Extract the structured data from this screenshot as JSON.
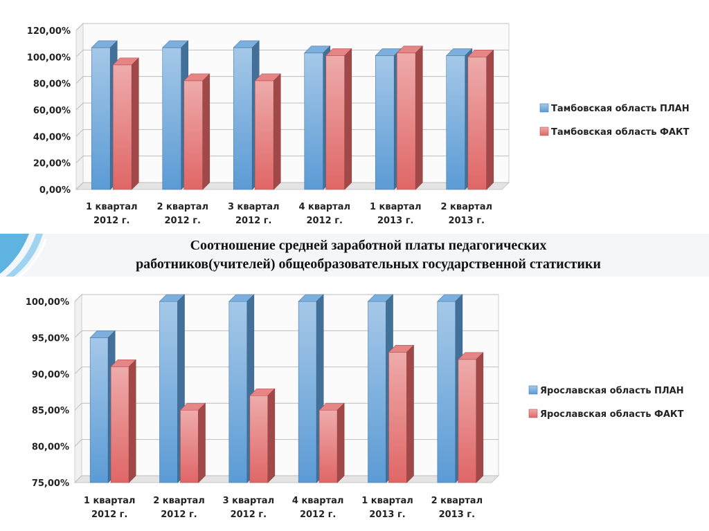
{
  "slide_title": {
    "line1": "Соотношение средней заработной платы педагогических",
    "line2": "работников(учителей) общеобразовательных государственной статистики"
  },
  "colors": {
    "plan": "#5b9bd5",
    "fact": "#e06666"
  },
  "chart_data": [
    {
      "type": "bar",
      "title": "",
      "categories": [
        [
          "1 квартал",
          "2012 г."
        ],
        [
          "2 квартал",
          "2012 г."
        ],
        [
          "3 квартал",
          "2012 г."
        ],
        [
          "4 квартал",
          "2012 г."
        ],
        [
          "1 квартал",
          "2013 г."
        ],
        [
          "2 квартал",
          "2013 г."
        ]
      ],
      "series": [
        {
          "name": "Тамбовская область ПЛАН",
          "values": [
            107,
            107,
            107,
            103,
            101,
            101
          ]
        },
        {
          "name": "Тамбовская область ФАКТ",
          "values": [
            94,
            82,
            82,
            101,
            103,
            100
          ]
        }
      ],
      "yticks": [
        "0,00%",
        "20,00%",
        "40,00%",
        "60,00%",
        "80,00%",
        "100,00%",
        "120,00%"
      ],
      "ylim": [
        0,
        120
      ],
      "ystep": 20,
      "grid": true,
      "legend_position": "right"
    },
    {
      "type": "bar",
      "title": "",
      "categories": [
        [
          "1 квартал",
          "2012 г."
        ],
        [
          "2 квартал",
          "2012 г."
        ],
        [
          "3 квартал",
          "2012 г."
        ],
        [
          "4 квартал",
          "2012 г."
        ],
        [
          "1 квартал",
          "2013 г."
        ],
        [
          "2 квартал",
          "2013 г."
        ]
      ],
      "series": [
        {
          "name": "Ярославская область ПЛАН",
          "values": [
            95,
            100,
            100,
            100,
            100,
            100
          ]
        },
        {
          "name": "Ярославская область ФАКТ",
          "values": [
            91,
            85,
            87,
            85,
            93,
            92
          ]
        }
      ],
      "yticks": [
        "75,00%",
        "80,00%",
        "85,00%",
        "90,00%",
        "95,00%",
        "100,00%"
      ],
      "ylim": [
        75,
        100
      ],
      "ystep": 5,
      "grid": true,
      "legend_position": "right"
    }
  ]
}
